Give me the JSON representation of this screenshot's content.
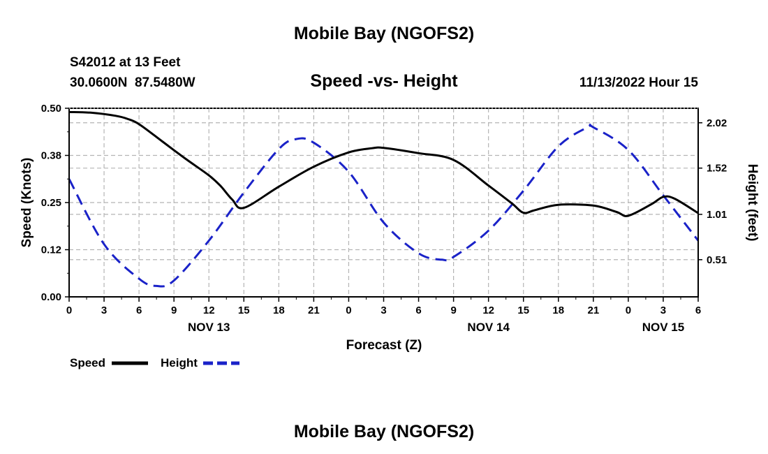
{
  "header": {
    "title": "Mobile Bay (NGOFS2)",
    "subtitle": "Speed -vs- Height",
    "station": "S42012 at 13 Feet",
    "coords": "30.0600N  87.5480W",
    "datetime": "11/13/2022 Hour 15"
  },
  "footer": {
    "title": "Mobile Bay (NGOFS2)"
  },
  "colors": {
    "speed": "#000000",
    "height": "#1a22c8",
    "grid": "#b4b4b4"
  },
  "chart_data": {
    "type": "line",
    "title": "Speed -vs- Height",
    "xlabel": "Forecast (Z)",
    "ylabel": "Speed (Knots)",
    "y2label": "Height (feet)",
    "x_unit": "hours",
    "xlim": [
      0,
      54
    ],
    "ylim": [
      0,
      0.5
    ],
    "y2lim": [
      0.1,
      2.18
    ],
    "grid": true,
    "legend_position": "bottom-left",
    "x_ticks": [
      {
        "x": 0,
        "label": "0"
      },
      {
        "x": 3,
        "label": "3"
      },
      {
        "x": 6,
        "label": "6"
      },
      {
        "x": 9,
        "label": "9"
      },
      {
        "x": 12,
        "label": "12"
      },
      {
        "x": 15,
        "label": "15"
      },
      {
        "x": 18,
        "label": "18"
      },
      {
        "x": 21,
        "label": "21"
      },
      {
        "x": 24,
        "label": "0"
      },
      {
        "x": 27,
        "label": "3"
      },
      {
        "x": 30,
        "label": "6"
      },
      {
        "x": 33,
        "label": "9"
      },
      {
        "x": 36,
        "label": "12"
      },
      {
        "x": 39,
        "label": "15"
      },
      {
        "x": 42,
        "label": "18"
      },
      {
        "x": 45,
        "label": "21"
      },
      {
        "x": 48,
        "label": "0"
      },
      {
        "x": 51,
        "label": "3"
      },
      {
        "x": 54,
        "label": "6"
      }
    ],
    "date_labels": [
      {
        "x": 12,
        "label": "NOV 13"
      },
      {
        "x": 36,
        "label": "NOV 14"
      },
      {
        "x": 51,
        "label": "NOV 15"
      }
    ],
    "y_ticks": [
      {
        "v": 0.0,
        "label": "0.00"
      },
      {
        "v": 0.125,
        "label": "0.12"
      },
      {
        "v": 0.25,
        "label": "0.25"
      },
      {
        "v": 0.375,
        "label": "0.38"
      },
      {
        "v": 0.5,
        "label": "0.50"
      }
    ],
    "y2_ticks": [
      {
        "v": 0.51,
        "label": "0.51"
      },
      {
        "v": 1.01,
        "label": "1.01"
      },
      {
        "v": 1.52,
        "label": "1.52"
      },
      {
        "v": 2.02,
        "label": "2.02"
      }
    ],
    "series": [
      {
        "name": "Speed",
        "axis": "left",
        "style": "solid",
        "x": [
          0,
          2,
          4,
          5,
          6,
          8,
          10,
          12,
          13,
          14,
          15,
          18,
          21,
          24,
          26,
          27,
          30,
          33,
          36,
          38,
          39,
          40,
          42,
          45,
          47,
          48,
          50,
          51,
          52,
          54
        ],
        "values": [
          0.49,
          0.488,
          0.48,
          0.472,
          0.458,
          0.412,
          0.366,
          0.322,
          0.294,
          0.258,
          0.236,
          0.292,
          0.345,
          0.383,
          0.394,
          0.395,
          0.381,
          0.363,
          0.295,
          0.248,
          0.223,
          0.23,
          0.244,
          0.242,
          0.225,
          0.215,
          0.246,
          0.265,
          0.26,
          0.222
        ]
      },
      {
        "name": "Height",
        "axis": "right",
        "style": "dashed",
        "x": [
          0,
          3,
          6,
          7.5,
          9,
          12,
          15,
          18,
          19.5,
          21,
          24,
          27,
          30,
          32,
          33,
          36,
          39,
          42,
          44.5,
          45,
          48,
          51,
          54
        ],
        "values": [
          1.4,
          0.68,
          0.3,
          0.22,
          0.28,
          0.72,
          1.25,
          1.73,
          1.84,
          1.8,
          1.48,
          0.92,
          0.58,
          0.51,
          0.54,
          0.83,
          1.27,
          1.76,
          1.97,
          1.97,
          1.72,
          1.22,
          0.72
        ]
      }
    ]
  }
}
